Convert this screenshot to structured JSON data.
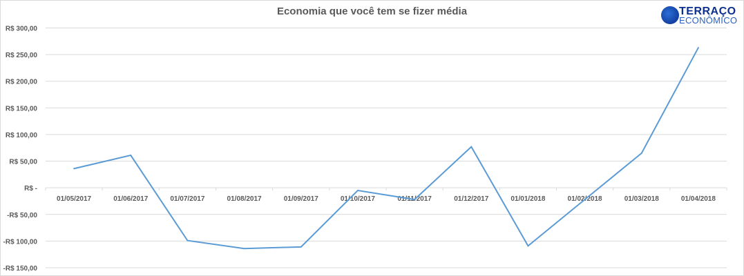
{
  "chart_data": {
    "type": "line",
    "title": "Economia que você tem se fizer média",
    "categories": [
      "01/05/2017",
      "01/06/2017",
      "01/07/2017",
      "01/08/2017",
      "01/09/2017",
      "01/10/2017",
      "01/11/2017",
      "01/12/2017",
      "01/01/2018",
      "01/02/2018",
      "01/03/2018",
      "01/04/2018"
    ],
    "series": [
      {
        "values": [
          36,
          61,
          -99,
          -114,
          -111,
          -5,
          -22,
          77,
          -109,
          -22,
          65,
          263
        ],
        "color": "#5b9bd5"
      }
    ],
    "ylim": [
      -150,
      300
    ],
    "yticks": [
      300,
      250,
      200,
      150,
      100,
      50,
      0,
      -50,
      -100,
      -150
    ],
    "ytick_labels": [
      "R$ 300,00",
      "R$ 250,00",
      "R$ 200,00",
      "R$ 150,00",
      "R$ 100,00",
      "R$ 50,00",
      "R$ -",
      "-R$ 50,00",
      "-R$ 100,00",
      "-R$ 150,00"
    ],
    "grid": true,
    "xlabel": "",
    "ylabel": ""
  },
  "logo": {
    "line1": "TERRAÇO",
    "line2": "ECONÔMICO"
  }
}
